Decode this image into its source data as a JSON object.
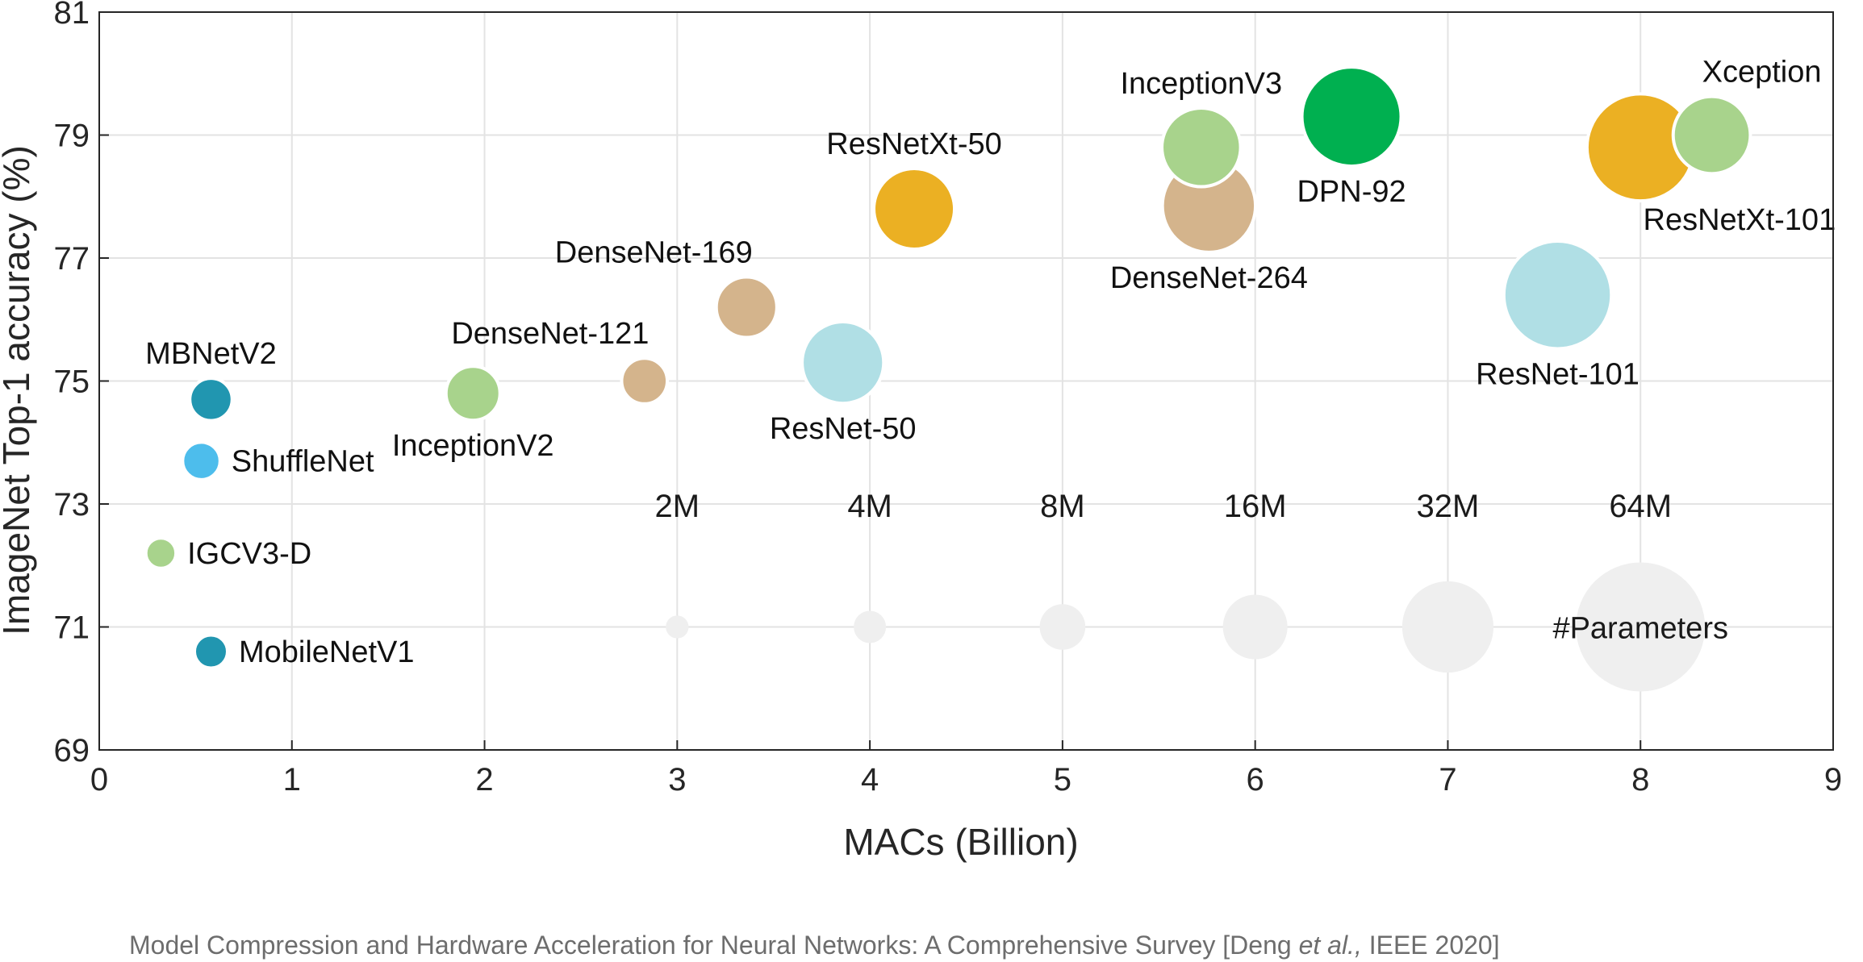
{
  "chart_data": {
    "type": "scatter",
    "subtype": "bubble",
    "xlabel": "MACs (Billion)",
    "ylabel": "ImageNet Top-1 accuracy (%)",
    "xlim": [
      0,
      9
    ],
    "ylim": [
      69,
      81
    ],
    "xticks": [
      0,
      1,
      2,
      3,
      4,
      5,
      6,
      7,
      8,
      9
    ],
    "yticks": [
      69,
      71,
      73,
      75,
      77,
      79,
      81
    ],
    "grid": true,
    "points": [
      {
        "name": "MobileNetV1",
        "x": 0.58,
        "y": 70.6,
        "params_m": 4.2,
        "color": "#2196B0",
        "label_pos": "right"
      },
      {
        "name": "IGCV3-D",
        "x": 0.32,
        "y": 72.2,
        "params_m": 3.5,
        "color": "#A8D38C",
        "label_pos": "right"
      },
      {
        "name": "ShuffleNet",
        "x": 0.53,
        "y": 73.7,
        "params_m": 5.4,
        "color": "#4DBDEC",
        "label_pos": "right"
      },
      {
        "name": "MBNetV2",
        "x": 0.58,
        "y": 74.7,
        "params_m": 6.9,
        "color": "#2196B0",
        "label_pos": "above"
      },
      {
        "name": "InceptionV2",
        "x": 1.94,
        "y": 74.8,
        "params_m": 11.2,
        "color": "#A8D38C",
        "label_pos": "below"
      },
      {
        "name": "DenseNet-121",
        "x": 2.83,
        "y": 75.0,
        "params_m": 8.0,
        "color": "#D4B48C",
        "label_pos": "above-left"
      },
      {
        "name": "DenseNet-169",
        "x": 3.36,
        "y": 76.2,
        "params_m": 14.1,
        "color": "#D4B48C",
        "label_pos": "above-left"
      },
      {
        "name": "ResNet-50",
        "x": 3.86,
        "y": 75.3,
        "params_m": 25.6,
        "color": "#B0DFE5",
        "label_pos": "below"
      },
      {
        "name": "ResNetXt-50",
        "x": 4.23,
        "y": 77.8,
        "params_m": 25.0,
        "color": "#EBB023",
        "label_pos": "above"
      },
      {
        "name": "DenseNet-264",
        "x": 5.76,
        "y": 77.85,
        "params_m": 33.3,
        "color": "#D4B48C",
        "label_pos": "below"
      },
      {
        "name": "DPN-92",
        "x": 6.5,
        "y": 79.3,
        "params_m": 37.8,
        "color": "#00B050",
        "label_pos": "below"
      },
      {
        "name": "InceptionV3",
        "x": 5.72,
        "y": 78.8,
        "params_m": 23.8,
        "color": "#A8D38C",
        "label_pos": "above"
      },
      {
        "name": "ResNet-101",
        "x": 7.57,
        "y": 76.4,
        "params_m": 44.5,
        "color": "#B0DFE5",
        "label_pos": "below"
      },
      {
        "name": "ResNetXt-101",
        "x": 8.0,
        "y": 78.8,
        "params_m": 44.0,
        "color": "#EBB023",
        "label_pos": "below-right"
      },
      {
        "name": "Xception",
        "x": 8.37,
        "y": 79.0,
        "params_m": 22.9,
        "color": "#A8D38C",
        "label_pos": "above-right"
      }
    ],
    "size_legend": {
      "title": "#Parameters",
      "y": 71,
      "items": [
        {
          "label": "2M",
          "x": 3,
          "params_m": 2
        },
        {
          "label": "4M",
          "x": 4,
          "params_m": 4
        },
        {
          "label": "8M",
          "x": 5,
          "params_m": 8
        },
        {
          "label": "16M",
          "x": 6,
          "params_m": 16
        },
        {
          "label": "32M",
          "x": 7,
          "params_m": 32
        },
        {
          "label": "64M",
          "x": 8,
          "params_m": 64
        }
      ]
    }
  },
  "caption": {
    "prefix": "Model Compression and Hardware Acceleration for Neural Networks: A Comprehensive Survey [Deng ",
    "italic": "et al.,",
    "suffix": " IEEE 2020]"
  },
  "colors": {
    "grid": "#e3e3e3",
    "axis": "#262626",
    "legend_bubble": "#efefef"
  }
}
